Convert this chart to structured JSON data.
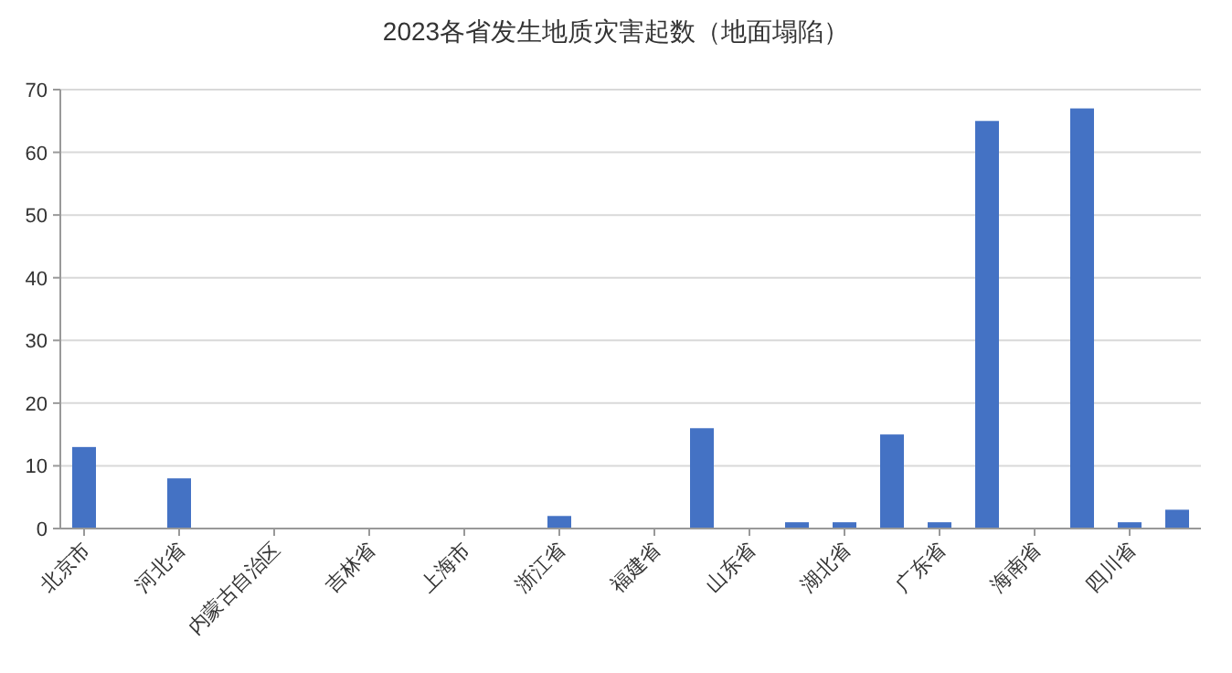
{
  "chart_data": {
    "type": "bar",
    "title": "2023各省发生地质灾害起数（地面塌陷）",
    "categories": [
      "北京市",
      null,
      "河北省",
      null,
      "内蒙古自治区",
      null,
      "吉林省",
      null,
      "上海市",
      null,
      "浙江省",
      null,
      "福建省",
      null,
      "山东省",
      null,
      "湖北省",
      null,
      "广东省",
      null,
      "海南省",
      null,
      "四川省",
      null
    ],
    "values": [
      13,
      0,
      8,
      0,
      0,
      0,
      0,
      0,
      0,
      0,
      2,
      0,
      0,
      16,
      0,
      1,
      1,
      15,
      1,
      65,
      0,
      67,
      1,
      3
    ],
    "color": "#4472c4",
    "ylim": [
      0,
      70
    ],
    "yticks": [
      0,
      10,
      20,
      30,
      40,
      50,
      60,
      70
    ],
    "grid": "y"
  }
}
